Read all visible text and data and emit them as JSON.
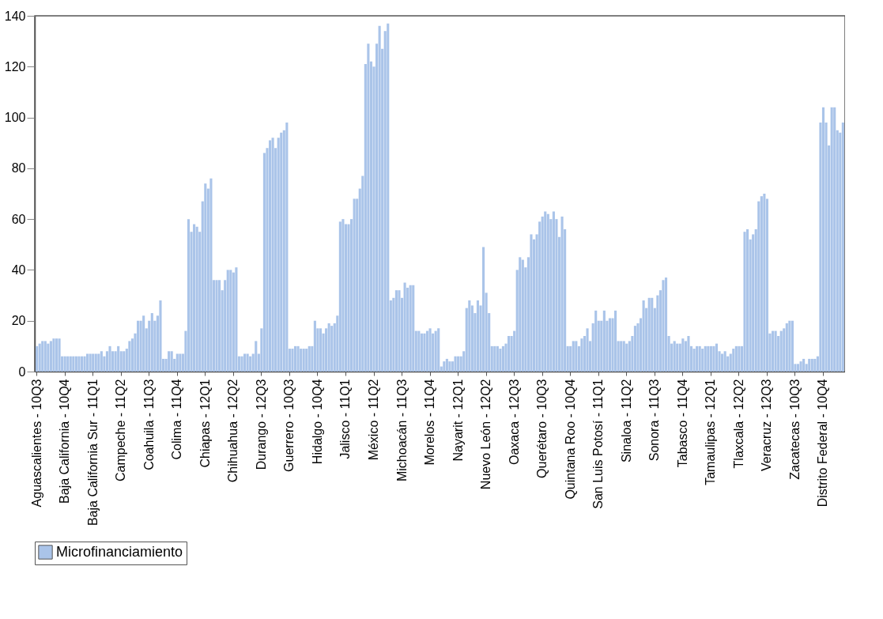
{
  "chart_data": {
    "type": "bar",
    "categories": [
      "Aguascalientes - 10Q3",
      null,
      null,
      null,
      null,
      null,
      null,
      null,
      null,
      null,
      "Baja California - 10Q4",
      null,
      null,
      null,
      null,
      null,
      null,
      null,
      null,
      null,
      "Baja California Sur - 11Q1",
      null,
      null,
      null,
      null,
      null,
      null,
      null,
      null,
      null,
      "Campeche - 11Q2",
      null,
      null,
      null,
      null,
      null,
      null,
      null,
      null,
      null,
      "Coahuila - 11Q3",
      null,
      null,
      null,
      null,
      null,
      null,
      null,
      null,
      null,
      "Colima - 11Q4",
      null,
      null,
      null,
      null,
      null,
      null,
      null,
      null,
      null,
      "Chiapas - 12Q1",
      null,
      null,
      null,
      null,
      null,
      null,
      null,
      null,
      null,
      "Chihuahua - 12Q2",
      null,
      null,
      null,
      null,
      null,
      null,
      null,
      null,
      null,
      "Durango - 12Q3",
      null,
      null,
      null,
      null,
      null,
      null,
      null,
      null,
      null,
      "Guerrero - 10Q3",
      null,
      null,
      null,
      null,
      null,
      null,
      null,
      null,
      null,
      "Hidalgo - 10Q4",
      null,
      null,
      null,
      null,
      null,
      null,
      null,
      null,
      null,
      "Jalisco - 11Q1",
      null,
      null,
      null,
      null,
      null,
      null,
      null,
      null,
      null,
      "México - 11Q2",
      null,
      null,
      null,
      null,
      null,
      null,
      null,
      null,
      null,
      "Michoacán - 11Q3",
      null,
      null,
      null,
      null,
      null,
      null,
      null,
      null,
      null,
      "Morelos - 11Q4",
      null,
      null,
      null,
      null,
      null,
      null,
      null,
      null,
      null,
      "Nayarit - 12Q1",
      null,
      null,
      null,
      null,
      null,
      null,
      null,
      null,
      null,
      "Nuevo León - 12Q2",
      null,
      null,
      null,
      null,
      null,
      null,
      null,
      null,
      null,
      "Oaxaca - 12Q3",
      null,
      null,
      null,
      null,
      null,
      null,
      null,
      null,
      null,
      "Querétaro - 10Q3",
      null,
      null,
      null,
      null,
      null,
      null,
      null,
      null,
      null,
      "Quintana Roo - 10Q4",
      null,
      null,
      null,
      null,
      null,
      null,
      null,
      null,
      null,
      "San Luis Potosí - 11Q1",
      null,
      null,
      null,
      null,
      null,
      null,
      null,
      null,
      null,
      "Sinaloa - 11Q2",
      null,
      null,
      null,
      null,
      null,
      null,
      null,
      null,
      null,
      "Sonora - 11Q3",
      null,
      null,
      null,
      null,
      null,
      null,
      null,
      null,
      null,
      "Tabasco - 11Q4",
      null,
      null,
      null,
      null,
      null,
      null,
      null,
      null,
      null,
      "Tamaulipas - 12Q1",
      null,
      null,
      null,
      null,
      null,
      null,
      null,
      null,
      null,
      "Tlaxcala - 12Q2",
      null,
      null,
      null,
      null,
      null,
      null,
      null,
      null,
      null,
      "Veracruz - 12Q3",
      null,
      null,
      null,
      null,
      null,
      null,
      null,
      null,
      null,
      "Zacatecas - 10Q3",
      null,
      null,
      null,
      null,
      null,
      null,
      null,
      null,
      null,
      "Distrito Federal - 10Q4",
      null,
      null,
      null,
      null,
      null,
      null,
      null
    ],
    "series": [
      {
        "name": "Microfinanciamiento",
        "color": "#aac4e9",
        "values": [
          10,
          11,
          12,
          12,
          11,
          12,
          13,
          13,
          13,
          6,
          6,
          6,
          6,
          6,
          6,
          6,
          6,
          6,
          7,
          7,
          7,
          7,
          7,
          8,
          6,
          8,
          10,
          8,
          8,
          10,
          8,
          8,
          9,
          12,
          13,
          15,
          20,
          20,
          22,
          17,
          20,
          23,
          20,
          22,
          28,
          5,
          5,
          8,
          8,
          5,
          7,
          7,
          7,
          16,
          60,
          55,
          58,
          57,
          55,
          67,
          74,
          72,
          76,
          36,
          36,
          36,
          32,
          36,
          40,
          40,
          39,
          41,
          6,
          6,
          7,
          7,
          6,
          7,
          12,
          7,
          17,
          86,
          88,
          91,
          92,
          88,
          92,
          94,
          95,
          98,
          9,
          9,
          10,
          10,
          9,
          9,
          9,
          10,
          10,
          20,
          17,
          17,
          15,
          17,
          19,
          18,
          19,
          22,
          59,
          60,
          58,
          58,
          60,
          68,
          68,
          72,
          77,
          121,
          129,
          122,
          120,
          129,
          136,
          127,
          134,
          137,
          28,
          29,
          32,
          32,
          29,
          35,
          33,
          34,
          34,
          16,
          16,
          15,
          15,
          16,
          17,
          15,
          16,
          17,
          2,
          4,
          5,
          4,
          4,
          6,
          6,
          6,
          8,
          25,
          28,
          26,
          23,
          28,
          26,
          49,
          31,
          23,
          10,
          10,
          10,
          9,
          10,
          11,
          14,
          14,
          16,
          40,
          45,
          44,
          41,
          45,
          54,
          52,
          54,
          59,
          61,
          63,
          62,
          60,
          63,
          60,
          53,
          61,
          56,
          10,
          10,
          12,
          12,
          10,
          13,
          14,
          17,
          12,
          19,
          24,
          20,
          20,
          24,
          20,
          21,
          21,
          24,
          12,
          12,
          12,
          11,
          12,
          14,
          18,
          19,
          21,
          28,
          25,
          29,
          29,
          25,
          30,
          32,
          36,
          37,
          14,
          11,
          12,
          11,
          11,
          13,
          12,
          14,
          10,
          9,
          10,
          10,
          9,
          10,
          10,
          10,
          10,
          11,
          8,
          7,
          8,
          6,
          7,
          9,
          10,
          10,
          10,
          55,
          56,
          52,
          54,
          56,
          67,
          69,
          70,
          68,
          15,
          16,
          16,
          14,
          16,
          17,
          19,
          20,
          20,
          3,
          3,
          4,
          5,
          3,
          5,
          5,
          5,
          6,
          98,
          104,
          98,
          89,
          104,
          104,
          95,
          94,
          98
        ]
      }
    ],
    "ylim": [
      0,
      140
    ],
    "yticks": [
      0,
      20,
      40,
      60,
      80,
      100,
      120,
      140
    ],
    "legend": "bottom"
  }
}
